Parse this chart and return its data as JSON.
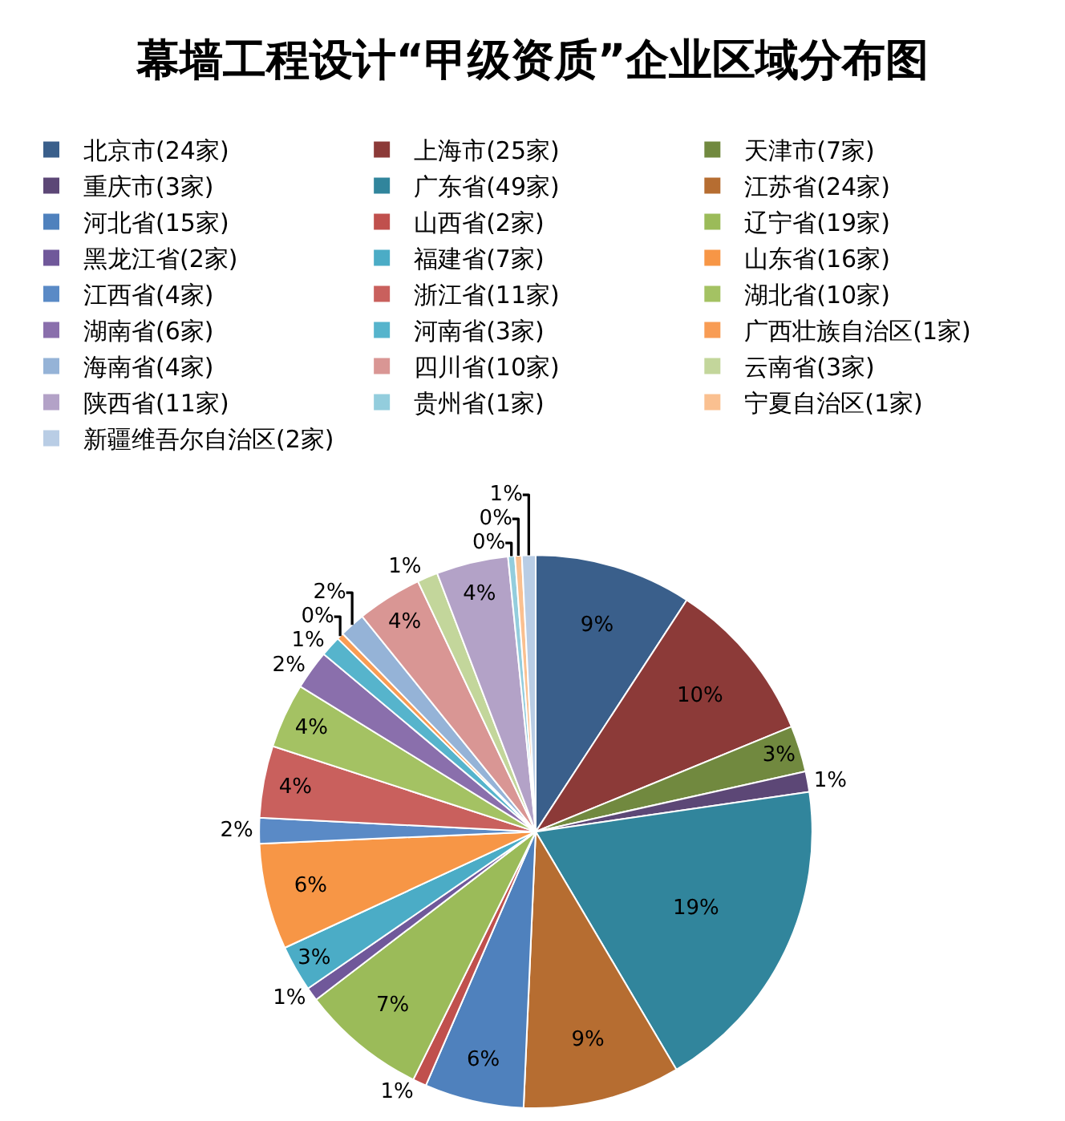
{
  "chart_data": {
    "type": "pie",
    "title": "幕墙工程设计“甲级资质”企业区域分布图",
    "categories": [
      "北京市(24家)",
      "上海市(25家)",
      "天津市(7家)",
      "重庆市(3家)",
      "广东省(49家)",
      "江苏省(24家)",
      "河北省(15家)",
      "山西省(2家)",
      "辽宁省(19家)",
      "黑龙江省(2家)",
      "福建省(7家)",
      "山东省(16家)",
      "江西省(4家)",
      "浙江省(11家)",
      "湖北省(10家)",
      "湖南省(6家)",
      "河南省(3家)",
      "广西壮族自治区(1家)",
      "海南省(4家)",
      "四川省(10家)",
      "云南省(3家)",
      "陕西省(11家)",
      "贵州省(1家)",
      "宁夏自治区(1家)",
      "新疆维吾尔自治区(2家)"
    ],
    "values": [
      9.2,
      9.6,
      2.7,
      1.2,
      18.8,
      9.2,
      5.8,
      0.8,
      7.3,
      0.8,
      2.7,
      6.2,
      1.5,
      4.2,
      3.8,
      2.3,
      1.2,
      0.4,
      1.5,
      3.8,
      1.2,
      4.2,
      0.4,
      0.4,
      0.8
    ],
    "value_labels": [
      "9%",
      "10%",
      "3%",
      "1%",
      "19%",
      "9%",
      "6%",
      "1%",
      "7%",
      "1%",
      "3%",
      "6%",
      "2%",
      "4%",
      "4%",
      "2%",
      "1%",
      "0%",
      "2%",
      "4%",
      "1%",
      "4%",
      "0%",
      "0%",
      "1%"
    ],
    "colors": [
      "#3a5f8b",
      "#8c3a38",
      "#71893f",
      "#5c4776",
      "#31859c",
      "#b66d31",
      "#4f81bd",
      "#c0504d",
      "#9bbb59",
      "#70589a",
      "#4bacc6",
      "#f79646",
      "#5a8ac6",
      "#c9605d",
      "#a4c263",
      "#8a6fac",
      "#56b4cc",
      "#f89c54",
      "#95b3d7",
      "#d99694",
      "#c3d69b",
      "#b3a2c7",
      "#93cddd",
      "#fac090",
      "#b9cde5"
    ],
    "legend": "top"
  }
}
